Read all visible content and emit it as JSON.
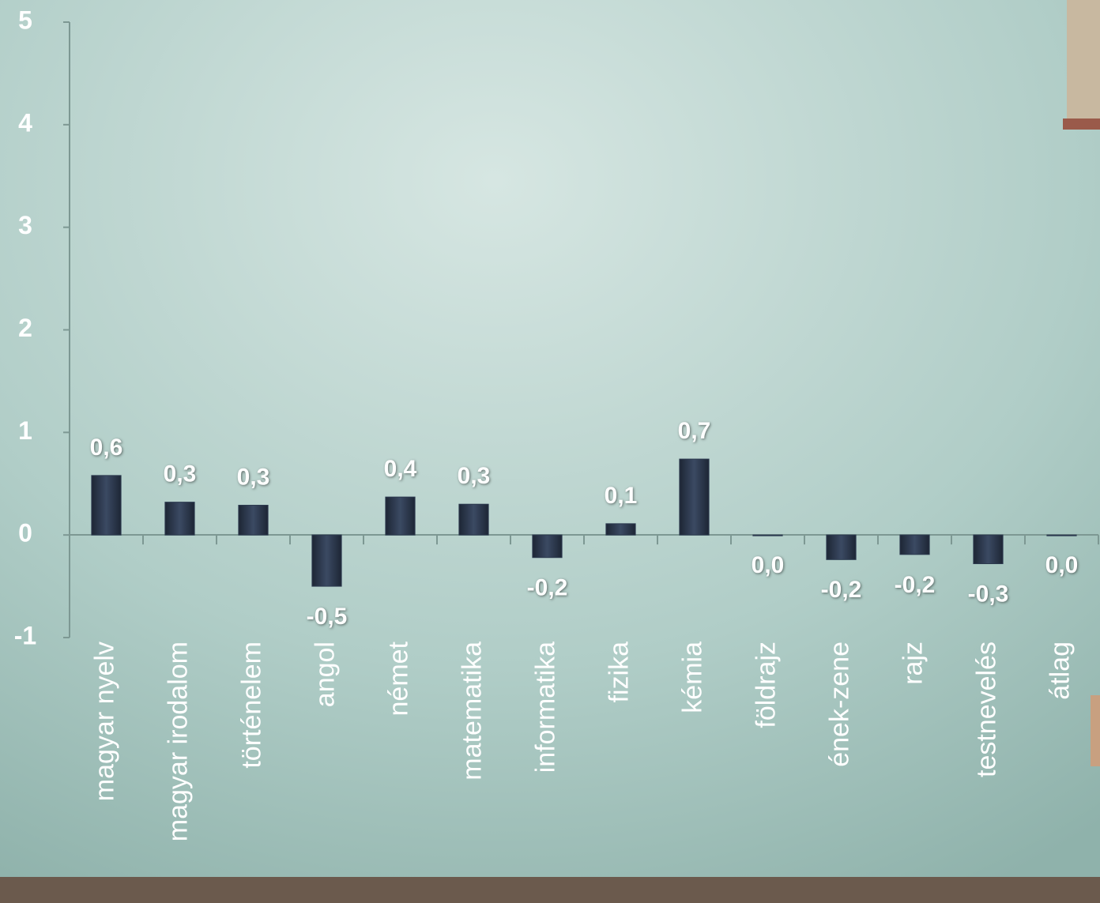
{
  "chart_data": {
    "type": "bar",
    "categories": [
      "magyar nyelv",
      "magyar irodalom",
      "történelem",
      "angol",
      "német",
      "matematika",
      "informatika",
      "fizika",
      "kémia",
      "földrajz",
      "ének-zene",
      "rajz",
      "testnevelés",
      "átlag"
    ],
    "values": [
      0.58,
      0.32,
      0.29,
      -0.5,
      0.37,
      0.3,
      -0.22,
      0.11,
      0.74,
      0,
      -0.24,
      -0.19,
      -0.28,
      0
    ],
    "value_labels": [
      "0,6",
      "0,3",
      "0,3",
      "-0,5",
      "0,4",
      "0,3",
      "-0,2",
      "0,1",
      "0,7",
      "0,0",
      "-0,2",
      "-0,2",
      "-0,3",
      "0,0"
    ],
    "color": "#2c3a4f",
    "ylim": [
      -1,
      5
    ],
    "yticks": [
      -1,
      0,
      1,
      2,
      3,
      4,
      5
    ]
  }
}
